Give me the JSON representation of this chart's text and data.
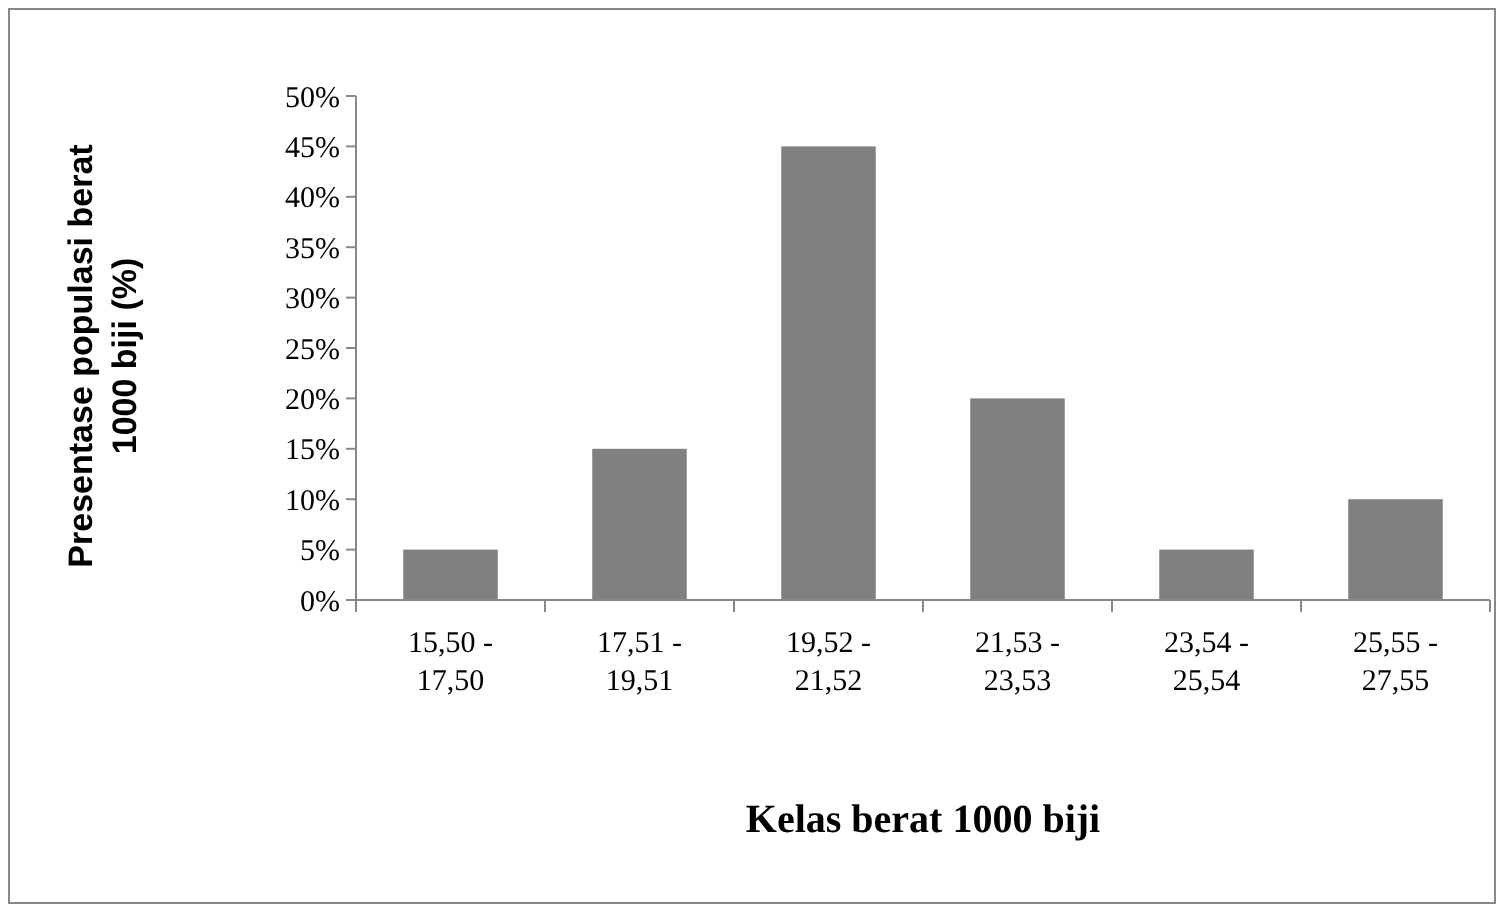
{
  "chart_data": {
    "type": "bar",
    "xlabel": "Kelas berat 1000 biji",
    "ylabel": "Presentase populasi berat 1000 biji (%)",
    "categories": [
      "15,50 - 17,50",
      "17,51 - 19,51",
      "19,52 - 21,52",
      "21,53 - 23,53",
      "23,54 - 25,54",
      "25,55 - 27,55"
    ],
    "values": [
      5,
      15,
      45,
      20,
      5,
      10
    ],
    "color": "#808080",
    "ylim": [
      0,
      50
    ],
    "yticks": [
      {
        "value": 0,
        "label": "0%"
      },
      {
        "value": 5,
        "label": "5%"
      },
      {
        "value": 10,
        "label": "10%"
      },
      {
        "value": 15,
        "label": "15%"
      },
      {
        "value": 20,
        "label": "20%"
      },
      {
        "value": 25,
        "label": "25%"
      },
      {
        "value": 30,
        "label": "30%"
      },
      {
        "value": 35,
        "label": "35%"
      },
      {
        "value": 40,
        "label": "40%"
      },
      {
        "value": 45,
        "label": "45%"
      },
      {
        "value": 50,
        "label": "50%"
      }
    ],
    "grid": false
  }
}
